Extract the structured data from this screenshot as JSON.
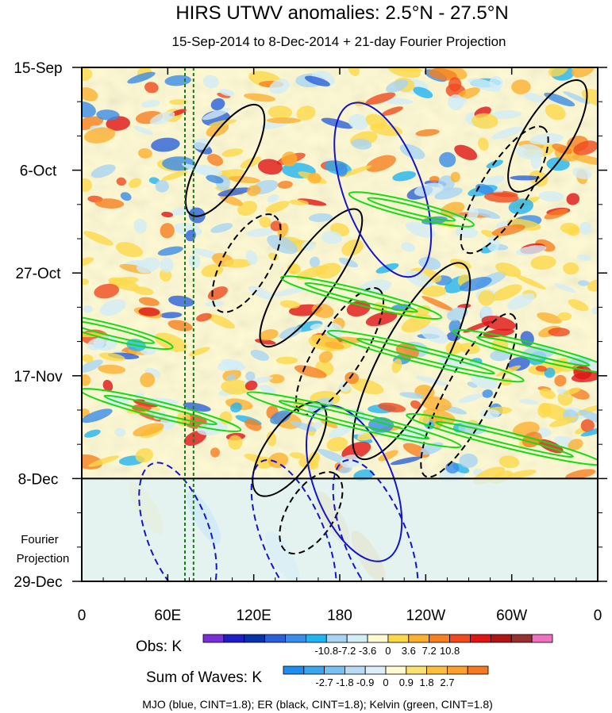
{
  "chart_data": {
    "type": "heatmap",
    "title": "HIRS UTWV anomalies: 2.5°N - 27.5°N",
    "subtitle": "15-Sep-2014 to 8-Dec-2014 + 21-day Fourier Projection",
    "x_ticks": [
      "0",
      "60E",
      "120E",
      "180",
      "120W",
      "60W",
      "0"
    ],
    "x_tick_lon": [
      0,
      60,
      120,
      180,
      240,
      300,
      360
    ],
    "xlim": [
      0,
      360
    ],
    "y_ticks": [
      "15-Sep",
      "6-Oct",
      "27-Oct",
      "17-Nov",
      "8-Dec",
      "29-Dec"
    ],
    "y_tick_day": [
      0,
      21,
      42,
      63,
      84,
      105
    ],
    "ylim_days": [
      0,
      105
    ],
    "obs_end_day": 84,
    "projection_label": [
      "Fourier",
      "Projection"
    ],
    "reference_lines_lon": [
      72,
      78
    ],
    "obs_colorbar": {
      "label": "Obs: K",
      "levels": [
        "-10.8",
        "-7.2",
        "-3.6",
        "0",
        "3.6",
        "7.2",
        "10.8"
      ],
      "colors": [
        "#7a30d8",
        "#1e1ec8",
        "#0a32a8",
        "#2a60d8",
        "#3a8ce8",
        "#22b4f0",
        "#a8d4f4",
        "#d2ecf8",
        "#fffad2",
        "#fcd848",
        "#fcb030",
        "#f68020",
        "#f04a1e",
        "#e01414",
        "#b01414",
        "#983030",
        "#f070c0"
      ]
    },
    "waves_colorbar": {
      "label": "Sum of Waves: K",
      "levels": [
        "-2.7",
        "-1.8",
        "-0.9",
        "0",
        "0.9",
        "1.8",
        "2.7"
      ],
      "colors": [
        "#1e8cf0",
        "#3aa6f0",
        "#78c2f2",
        "#b8dcf4",
        "#ddeef8",
        "#fffad2",
        "#fce070",
        "#fcc040",
        "#fca030",
        "#f67820"
      ]
    },
    "footer": "MJO (blue, CINT=1.8); ER (black, CINT=1.8); Kelvin (green, CINT=1.8)",
    "wave_contours": [
      {
        "wave": "ER",
        "color": "#000000",
        "sign": "+",
        "lon": 100,
        "day": 19,
        "len": 14,
        "wid": 3,
        "angle": -58
      },
      {
        "wave": "ER",
        "color": "#000000",
        "sign": "-",
        "lon": 115,
        "day": 40,
        "len": 12,
        "wid": 3,
        "angle": -60
      },
      {
        "wave": "ER",
        "color": "#000000",
        "sign": "+",
        "lon": 160,
        "day": 43,
        "len": 18,
        "wid": 3,
        "angle": -55
      },
      {
        "wave": "ER",
        "color": "#000000",
        "sign": "-",
        "lon": 180,
        "day": 58,
        "len": 16,
        "wid": 3,
        "angle": -58
      },
      {
        "wave": "ER",
        "color": "#000000",
        "sign": "+",
        "lon": 230,
        "day": 60,
        "len": 24,
        "wid": 4,
        "angle": -62
      },
      {
        "wave": "ER",
        "color": "#000000",
        "sign": "-",
        "lon": 270,
        "day": 67,
        "len": 20,
        "wid": 3,
        "angle": -62
      },
      {
        "wave": "ER",
        "color": "#000000",
        "sign": "+",
        "lon": 145,
        "day": 78,
        "len": 12,
        "wid": 3,
        "angle": -55
      },
      {
        "wave": "ER",
        "color": "#000000",
        "sign": "-",
        "lon": 160,
        "day": 91,
        "len": 10,
        "wid": 3,
        "angle": -58
      },
      {
        "wave": "ER",
        "color": "#000000",
        "sign": "+",
        "lon": 325,
        "day": 14,
        "len": 14,
        "wid": 3,
        "angle": -58
      },
      {
        "wave": "ER",
        "color": "#000000",
        "sign": "-",
        "lon": 295,
        "day": 25,
        "len": 16,
        "wid": 3,
        "angle": -58
      },
      {
        "wave": "MJO",
        "color": "#1414c8",
        "sign": "+",
        "lon": 210,
        "day": 25,
        "len": 20,
        "wid": 5,
        "angle": 70
      },
      {
        "wave": "MJO",
        "color": "#1414c8",
        "sign": "+",
        "lon": 190,
        "day": 85,
        "len": 18,
        "wid": 5,
        "angle": 68
      },
      {
        "wave": "MJO",
        "color": "#1414c8",
        "sign": "-",
        "lon": 148,
        "day": 96,
        "len": 18,
        "wid": 4,
        "angle": 68
      },
      {
        "wave": "MJO",
        "color": "#1414c8",
        "sign": "-",
        "lon": 205,
        "day": 96,
        "len": 18,
        "wid": 4,
        "angle": 68
      },
      {
        "wave": "MJO",
        "color": "#1414c8",
        "sign": "-",
        "lon": 67,
        "day": 95,
        "len": 16,
        "wid": 4,
        "angle": 70
      },
      {
        "wave": "Kelvin",
        "color": "#14dc14",
        "sign": "+",
        "lon": 190,
        "day": 72,
        "len": 24,
        "wid": 1,
        "angle": 14
      },
      {
        "wave": "Kelvin",
        "color": "#14dc14",
        "sign": "+",
        "lon": 240,
        "day": 59,
        "len": 22,
        "wid": 1,
        "angle": 14
      },
      {
        "wave": "Kelvin",
        "color": "#14dc14",
        "sign": "+",
        "lon": 195,
        "day": 47,
        "len": 18,
        "wid": 1,
        "angle": 14
      },
      {
        "wave": "Kelvin",
        "color": "#14dc14",
        "sign": "+",
        "lon": 55,
        "day": 70,
        "len": 18,
        "wid": 1,
        "angle": 14
      },
      {
        "wave": "Kelvin",
        "color": "#14dc14",
        "sign": "+",
        "lon": 20,
        "day": 54,
        "len": 14,
        "wid": 1,
        "angle": 14
      },
      {
        "wave": "Kelvin",
        "color": "#14dc14",
        "sign": "+",
        "lon": 295,
        "day": 76,
        "len": 22,
        "wid": 1,
        "angle": 14
      },
      {
        "wave": "Kelvin",
        "color": "#14dc14",
        "sign": "+",
        "lon": 315,
        "day": 58,
        "len": 18,
        "wid": 1,
        "angle": 14
      },
      {
        "wave": "Kelvin",
        "color": "#14dc14",
        "sign": "+",
        "lon": 230,
        "day": 29,
        "len": 14,
        "wid": 1,
        "angle": 14
      }
    ]
  }
}
